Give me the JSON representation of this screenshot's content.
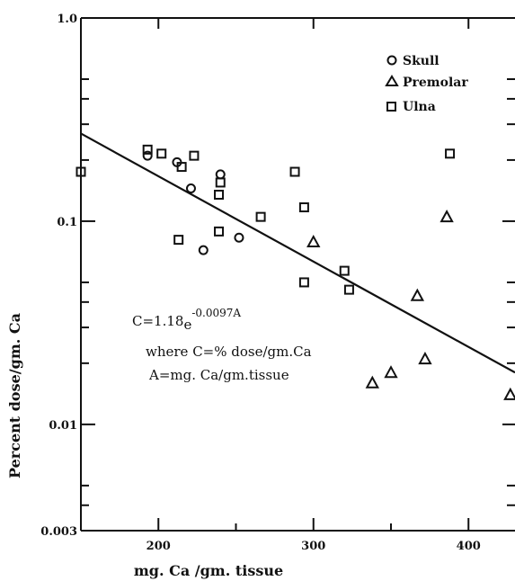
{
  "chart_data": {
    "type": "scatter",
    "title": "",
    "xlabel": "mg. Ca /gm. tissue",
    "ylabel": "Percent dose/gm. Ca",
    "xlim": [
      150,
      430
    ],
    "ylim": [
      0.003,
      1.0
    ],
    "yscale": "log",
    "x_ticks": [
      200,
      300,
      400
    ],
    "x_tick_labels": [
      "200",
      "300",
      "400"
    ],
    "y_ticks": [
      0.003,
      0.01,
      0.1,
      1.0
    ],
    "y_tick_labels": [
      "0.003",
      "0.01",
      "0.1",
      "1.0"
    ],
    "grid": false,
    "legend_position": "top-right",
    "series": [
      {
        "name": "Skull",
        "marker": "circle",
        "points": [
          {
            "x": 193,
            "y": 0.21
          },
          {
            "x": 212,
            "y": 0.195
          },
          {
            "x": 221,
            "y": 0.145
          },
          {
            "x": 240,
            "y": 0.17
          },
          {
            "x": 229,
            "y": 0.072
          },
          {
            "x": 252,
            "y": 0.083
          }
        ]
      },
      {
        "name": "Premolar",
        "marker": "triangle",
        "points": [
          {
            "x": 300,
            "y": 0.079
          },
          {
            "x": 338,
            "y": 0.016
          },
          {
            "x": 350,
            "y": 0.018
          },
          {
            "x": 367,
            "y": 0.043
          },
          {
            "x": 372,
            "y": 0.021
          },
          {
            "x": 386,
            "y": 0.105
          },
          {
            "x": 427,
            "y": 0.014
          }
        ]
      },
      {
        "name": "Ulna",
        "marker": "square",
        "points": [
          {
            "x": 150,
            "y": 0.175
          },
          {
            "x": 193,
            "y": 0.225
          },
          {
            "x": 202,
            "y": 0.215
          },
          {
            "x": 215,
            "y": 0.185
          },
          {
            "x": 223,
            "y": 0.21
          },
          {
            "x": 240,
            "y": 0.155
          },
          {
            "x": 239,
            "y": 0.135
          },
          {
            "x": 213,
            "y": 0.081
          },
          {
            "x": 239,
            "y": 0.089
          },
          {
            "x": 266,
            "y": 0.105
          },
          {
            "x": 288,
            "y": 0.175
          },
          {
            "x": 294,
            "y": 0.117
          },
          {
            "x": 294,
            "y": 0.05
          },
          {
            "x": 320,
            "y": 0.057
          },
          {
            "x": 323,
            "y": 0.046
          },
          {
            "x": 388,
            "y": 0.215
          }
        ]
      }
    ],
    "fit_line": {
      "points": [
        {
          "x": 150,
          "y": 0.27
        },
        {
          "x": 430,
          "y": 0.018
        }
      ]
    },
    "annotations": [
      "C=1.18e-0.0097A",
      "where C=% dose/gm.Ca",
      "A=mg. Ca/gm.tissue"
    ]
  },
  "equation": {
    "line1_base": "C=1.18",
    "line1_e": "e",
    "line1_exp": "-0.0097A",
    "line2": "where C=% dose/gm.Ca",
    "line3": "A=mg. Ca/gm.tissue"
  }
}
